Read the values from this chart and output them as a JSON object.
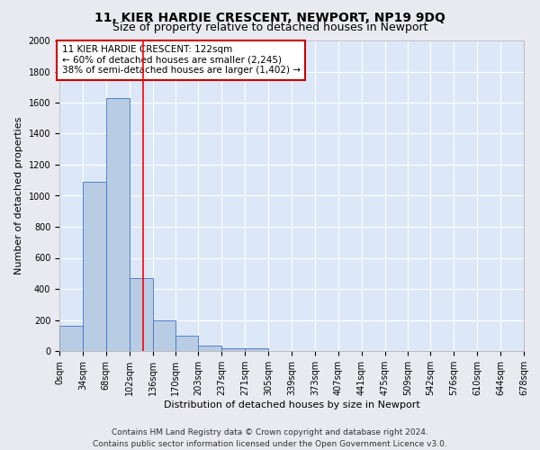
{
  "title": "11, KIER HARDIE CRESCENT, NEWPORT, NP19 9DQ",
  "subtitle": "Size of property relative to detached houses in Newport",
  "xlabel": "Distribution of detached houses by size in Newport",
  "ylabel": "Number of detached properties",
  "footer_line1": "Contains HM Land Registry data © Crown copyright and database right 2024.",
  "footer_line2": "Contains public sector information licensed under the Open Government Licence v3.0.",
  "annotation_title": "11 KIER HARDIE CRESCENT: 122sqm",
  "annotation_line2": "← 60% of detached houses are smaller (2,245)",
  "annotation_line3": "38% of semi-detached houses are larger (1,402) →",
  "property_size_sqm": 122,
  "bar_left_edges": [
    0,
    34,
    68,
    102,
    136,
    170,
    203,
    237,
    271,
    305,
    339,
    373,
    407,
    441,
    475,
    509,
    542,
    576,
    610,
    644
  ],
  "bar_widths": [
    34,
    34,
    34,
    34,
    34,
    33,
    34,
    34,
    34,
    34,
    34,
    34,
    34,
    34,
    34,
    33,
    34,
    34,
    34,
    34
  ],
  "bar_heights": [
    160,
    1090,
    1630,
    470,
    200,
    100,
    35,
    20,
    15,
    0,
    0,
    0,
    0,
    0,
    0,
    0,
    0,
    0,
    0,
    0
  ],
  "tick_labels": [
    "0sqm",
    "34sqm",
    "68sqm",
    "102sqm",
    "136sqm",
    "170sqm",
    "203sqm",
    "237sqm",
    "271sqm",
    "305sqm",
    "339sqm",
    "373sqm",
    "407sqm",
    "441sqm",
    "475sqm",
    "509sqm",
    "542sqm",
    "576sqm",
    "610sqm",
    "644sqm",
    "678sqm"
  ],
  "ylim": [
    0,
    2000
  ],
  "yticks": [
    0,
    200,
    400,
    600,
    800,
    1000,
    1200,
    1400,
    1600,
    1800,
    2000
  ],
  "bar_color": "#b8cce4",
  "bar_edge_color": "#4472c4",
  "red_line_x": 122,
  "background_color": "#e9e9f0",
  "plot_bg_color": "#dce8f8",
  "annotation_box_color": "#ffffff",
  "annotation_box_edge": "#cc0000",
  "grid_color": "#ffffff",
  "title_fontsize": 10,
  "subtitle_fontsize": 9,
  "axis_label_fontsize": 8,
  "tick_fontsize": 7,
  "footer_fontsize": 6.5,
  "annotation_fontsize": 7.5
}
